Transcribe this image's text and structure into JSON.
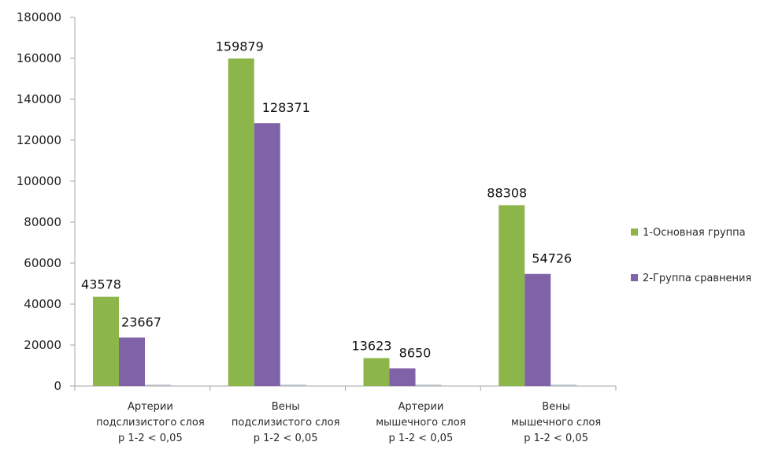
{
  "chart_data": {
    "type": "bar",
    "categories": [
      [
        "Артерии",
        "подслизистого слоя",
        "p 1-2 < 0,05"
      ],
      [
        "Вены",
        "подслизистого слоя",
        "p 1-2 < 0,05"
      ],
      [
        "Артерии",
        "мышечного слоя",
        "p 1-2 < 0,05"
      ],
      [
        "Вены",
        "мышечного слоя",
        "p 1-2 < 0,05"
      ]
    ],
    "series": [
      {
        "name": "1-Основная группа",
        "color": "#8db64a",
        "values": [
          43578,
          159879,
          13623,
          88308
        ]
      },
      {
        "name": "2-Группа сравнения",
        "color": "#7f62a8",
        "values": [
          23667,
          128371,
          8650,
          54726
        ]
      }
    ],
    "data_labels": [
      [
        "43578",
        "159879",
        "13623",
        "88308"
      ],
      [
        "23667",
        "128371",
        "8650",
        "54726"
      ]
    ],
    "ylim": [
      0,
      180000
    ],
    "yticks": [
      0,
      20000,
      40000,
      60000,
      80000,
      100000,
      120000,
      140000,
      160000,
      180000
    ],
    "ytick_labels": [
      "0",
      "20000",
      "40000",
      "60000",
      "80000",
      "100000",
      "120000",
      "140000",
      "160000",
      "180000"
    ],
    "grid": false,
    "legend_position": "right"
  }
}
